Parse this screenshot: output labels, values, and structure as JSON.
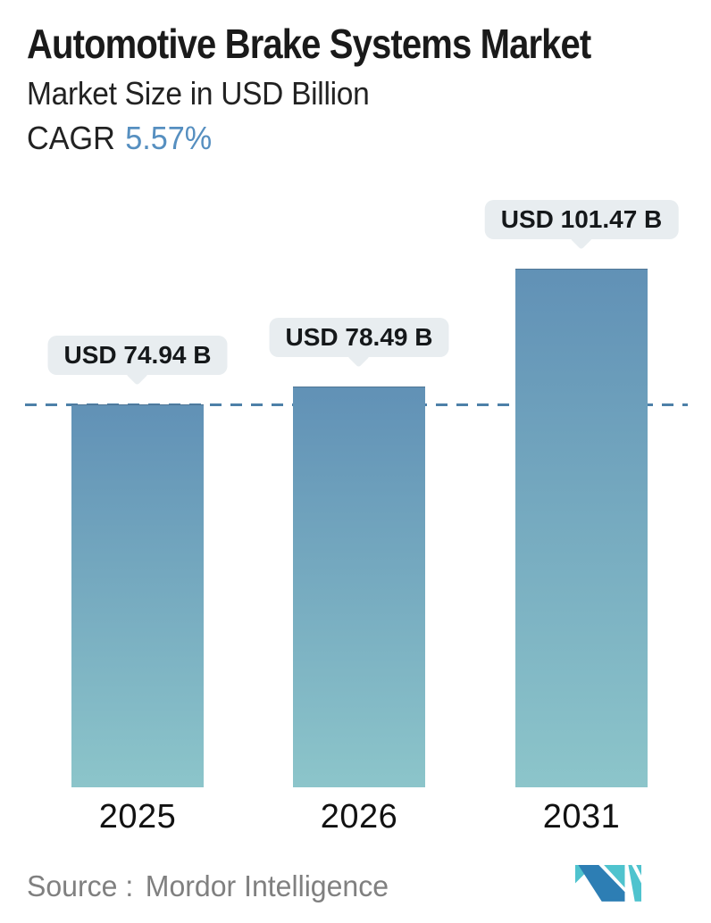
{
  "header": {
    "title": "Automotive Brake Systems Market",
    "subtitle": "Market Size in USD Billion",
    "cagr_label": "CAGR",
    "cagr_value": "5.57%"
  },
  "chart_data": {
    "type": "bar",
    "title": "Automotive Brake Systems Market",
    "subtitle": "Market Size in USD Billion",
    "unit": "USD Billion",
    "categories": [
      "2025",
      "2026",
      "2031"
    ],
    "values": [
      74.94,
      78.49,
      101.47
    ],
    "bar_labels": [
      "USD 74.94 B",
      "USD 78.49 B",
      "USD 101.47 B"
    ],
    "cagr_percent": 5.57,
    "ylim": [
      0,
      110
    ],
    "grid": false,
    "legend": false,
    "reference_line": {
      "value": 74.94,
      "style": "dashed",
      "color": "#4d80a8",
      "note": "horizontal dashed line at 2025 level"
    }
  },
  "footer": {
    "source_label": "Source :",
    "source_value": "Mordor Intelligence"
  },
  "theme": {
    "accent_blue": "#568fc0",
    "bar_top": "#6191b6",
    "bar_bottom": "#8cc5ca",
    "bubble_bg": "#e8edf0",
    "dash_color": "#4d80a8",
    "text_dark": "#1a1a1a",
    "text_gray": "#808080",
    "logo_blue": "#2d7eb4",
    "logo_teal": "#4fc3ce"
  }
}
